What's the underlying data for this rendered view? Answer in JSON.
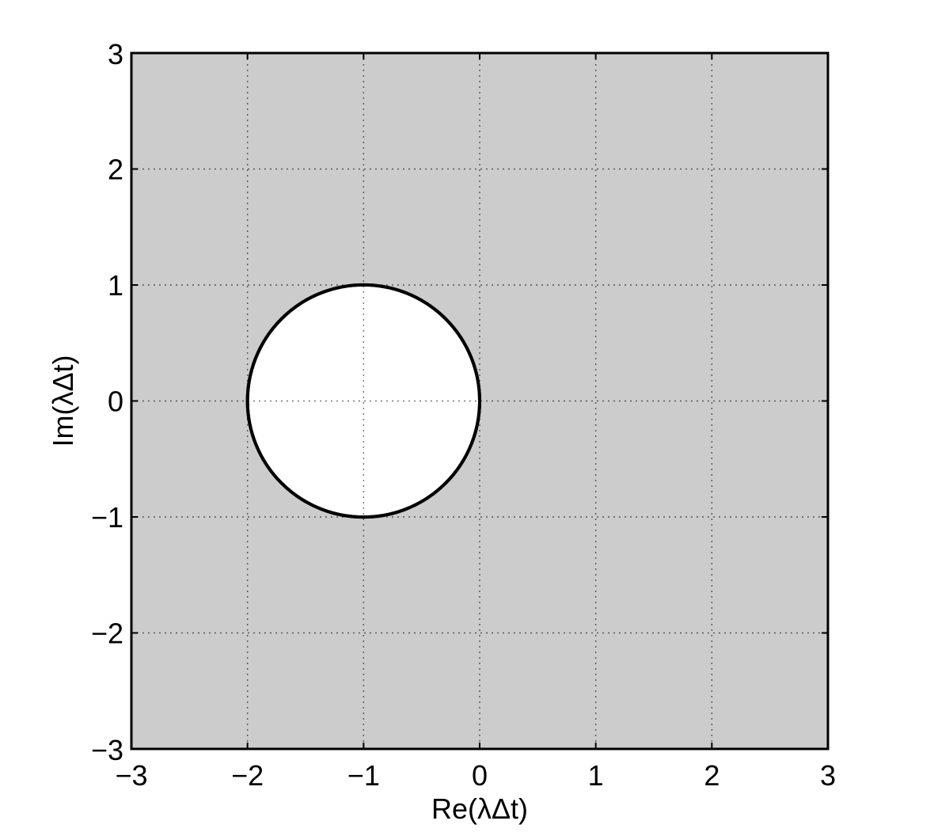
{
  "chart_data": {
    "type": "region-plot",
    "xlabel": "Re(λΔt)",
    "ylabel": "Im(λΔt)",
    "xlim": [
      -3,
      3
    ],
    "ylim": [
      -3,
      3
    ],
    "xticks": [
      -3,
      -2,
      -1,
      0,
      1,
      2,
      3
    ],
    "yticks": [
      -3,
      -2,
      -1,
      0,
      1,
      2,
      3
    ],
    "xtick_labels": [
      "−3",
      "−2",
      "−1",
      "0",
      "1",
      "2",
      "3"
    ],
    "ytick_labels": [
      "−3",
      "−2",
      "−1",
      "0",
      "1",
      "2",
      "3"
    ],
    "grid": true,
    "grid_style": "dotted",
    "background_region_color": "#cccccc",
    "circle": {
      "center": [
        -1,
        0
      ],
      "radius": 1,
      "fill": "#ffffff",
      "stroke": "#000000"
    }
  }
}
